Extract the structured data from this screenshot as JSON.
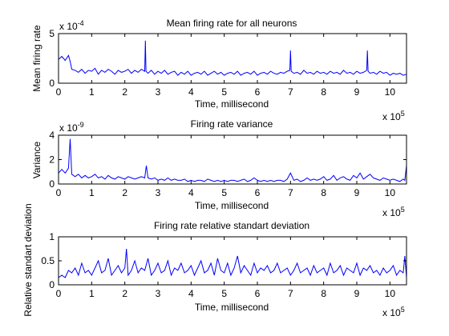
{
  "colors": {
    "line": "#0000ff",
    "axes": "#000000",
    "background": "#ffffff"
  },
  "chart_data": [
    {
      "type": "line",
      "title": "Mean firing rate for all neurons",
      "xlabel": "Time, millisecond",
      "ylabel": "Mean firing rate",
      "x_multiplier": "x 10",
      "x_exponent": "5",
      "y_multiplier": "x 10",
      "y_exponent": "-4",
      "xlim": [
        0,
        10.5
      ],
      "ylim": [
        0,
        5
      ],
      "xticks": [
        "0",
        "1",
        "2",
        "3",
        "4",
        "5",
        "6",
        "7",
        "8",
        "9",
        "10"
      ],
      "yticks": [
        "0",
        "5"
      ],
      "grid": false,
      "series": [
        {
          "x": [
            0,
            0.1,
            0.2,
            0.3,
            0.35,
            0.4,
            0.5,
            0.6,
            0.7,
            0.8,
            0.9,
            1,
            1.1,
            1.2,
            1.3,
            1.4,
            1.5,
            1.6,
            1.7,
            1.8,
            1.9,
            2,
            2.1,
            2.2,
            2.3,
            2.4,
            2.5,
            2.6,
            2.62,
            2.64,
            2.7,
            2.8,
            2.9,
            3,
            3.1,
            3.2,
            3.3,
            3.4,
            3.5,
            3.6,
            3.7,
            3.8,
            3.9,
            4,
            4.1,
            4.2,
            4.3,
            4.4,
            4.5,
            4.6,
            4.7,
            4.8,
            4.9,
            5,
            5.1,
            5.2,
            5.3,
            5.4,
            5.5,
            5.6,
            5.7,
            5.8,
            5.9,
            6,
            6.1,
            6.2,
            6.3,
            6.4,
            6.5,
            6.6,
            6.7,
            6.8,
            6.9,
            6.98,
            7,
            7.02,
            7.1,
            7.2,
            7.3,
            7.4,
            7.5,
            7.6,
            7.7,
            7.8,
            7.9,
            8,
            8.1,
            8.2,
            8.3,
            8.4,
            8.5,
            8.6,
            8.7,
            8.8,
            8.9,
            9,
            9.1,
            9.2,
            9.3,
            9.32,
            9.34,
            9.4,
            9.5,
            9.6,
            9.7,
            9.8,
            9.9,
            10,
            10.1,
            10.2,
            10.3,
            10.4,
            10.5
          ],
          "y": [
            2.4,
            2.7,
            2.3,
            2.8,
            2.2,
            1.4,
            1.3,
            1.1,
            1.4,
            1.0,
            1.3,
            1.2,
            1.5,
            0.9,
            1.3,
            1.1,
            1.4,
            1.2,
            0.9,
            1.3,
            1.1,
            1.2,
            1.4,
            1.0,
            1.3,
            1.1,
            1.4,
            1.2,
            4.3,
            1.2,
            1.0,
            1.3,
            0.9,
            1.2,
            1.0,
            1.3,
            0.9,
            1.1,
            1.2,
            0.8,
            1.1,
            0.9,
            1.2,
            0.8,
            1.0,
            1.1,
            0.9,
            1.2,
            0.8,
            1.0,
            1.2,
            0.9,
            1.1,
            0.8,
            1.0,
            1.1,
            0.9,
            1.2,
            0.8,
            1.0,
            1.1,
            0.9,
            1.2,
            0.8,
            1.0,
            1.1,
            0.9,
            1.2,
            1.0,
            0.9,
            1.1,
            1.0,
            1.2,
            1.3,
            3.3,
            1.2,
            1.0,
            1.1,
            0.9,
            1.3,
            1.0,
            1.1,
            0.9,
            1.2,
            1.0,
            1.1,
            0.9,
            1.2,
            1.0,
            1.1,
            0.9,
            1.3,
            1.0,
            1.1,
            0.9,
            1.2,
            1.0,
            1.1,
            1.3,
            3.3,
            1.2,
            1.0,
            1.1,
            0.9,
            1.2,
            1.0,
            1.1,
            0.8,
            1.0,
            0.9,
            1.0,
            0.8,
            0.9
          ]
        }
      ]
    },
    {
      "type": "line",
      "title": "Firing rate variance",
      "xlabel": "Time, millisecond",
      "ylabel": "Variance",
      "x_multiplier": "x 10",
      "x_exponent": "5",
      "y_multiplier": "x 10",
      "y_exponent": "-9",
      "xlim": [
        0,
        10.5
      ],
      "ylim": [
        0,
        4
      ],
      "xticks": [
        "0",
        "1",
        "2",
        "3",
        "4",
        "5",
        "6",
        "7",
        "8",
        "9",
        "10"
      ],
      "yticks": [
        "0",
        "2",
        "4"
      ],
      "grid": false,
      "series": [
        {
          "x": [
            0,
            0.1,
            0.2,
            0.3,
            0.35,
            0.4,
            0.5,
            0.6,
            0.7,
            0.8,
            0.9,
            1,
            1.1,
            1.2,
            1.3,
            1.4,
            1.5,
            1.6,
            1.7,
            1.8,
            1.9,
            2,
            2.1,
            2.2,
            2.3,
            2.4,
            2.5,
            2.6,
            2.65,
            2.7,
            2.8,
            2.9,
            3,
            3.1,
            3.2,
            3.3,
            3.4,
            3.5,
            3.6,
            3.7,
            3.8,
            3.9,
            4,
            4.1,
            4.2,
            4.3,
            4.4,
            4.5,
            4.6,
            4.7,
            4.8,
            4.9,
            5,
            5.1,
            5.2,
            5.3,
            5.4,
            5.5,
            5.6,
            5.7,
            5.8,
            5.9,
            6,
            6.1,
            6.2,
            6.3,
            6.4,
            6.5,
            6.6,
            6.7,
            6.8,
            6.9,
            7,
            7.1,
            7.2,
            7.3,
            7.4,
            7.5,
            7.6,
            7.7,
            7.8,
            7.9,
            8,
            8.1,
            8.2,
            8.3,
            8.4,
            8.5,
            8.6,
            8.7,
            8.8,
            8.9,
            9,
            9.1,
            9.2,
            9.3,
            9.4,
            9.5,
            9.6,
            9.7,
            9.8,
            9.9,
            10,
            10.1,
            10.2,
            10.3,
            10.4,
            10.45,
            10.5
          ],
          "y": [
            0.9,
            1.2,
            0.9,
            1.3,
            3.7,
            0.8,
            0.6,
            0.8,
            0.5,
            0.7,
            0.5,
            0.6,
            0.8,
            0.5,
            0.6,
            0.4,
            0.7,
            0.5,
            0.4,
            0.6,
            0.5,
            0.4,
            0.6,
            0.5,
            0.4,
            0.5,
            0.6,
            0.5,
            1.5,
            0.5,
            0.4,
            0.5,
            0.3,
            0.4,
            0.3,
            0.5,
            0.3,
            0.4,
            0.3,
            0.3,
            0.4,
            0.2,
            0.3,
            0.2,
            0.3,
            0.3,
            0.2,
            0.4,
            0.3,
            0.2,
            0.3,
            0.2,
            0.3,
            0.2,
            0.3,
            0.3,
            0.2,
            0.3,
            0.4,
            0.2,
            0.3,
            0.5,
            0.3,
            0.2,
            0.3,
            0.2,
            0.3,
            0.2,
            0.3,
            0.3,
            0.2,
            0.4,
            0.9,
            0.3,
            0.4,
            0.2,
            0.3,
            0.5,
            0.3,
            0.4,
            0.3,
            0.4,
            0.6,
            0.3,
            0.4,
            0.7,
            0.3,
            0.5,
            0.6,
            0.4,
            0.3,
            0.7,
            0.5,
            0.9,
            0.4,
            0.6,
            0.8,
            0.5,
            0.4,
            0.3,
            0.5,
            0.4,
            0.3,
            0.4,
            0.3,
            0.2,
            0.4,
            0.3,
            1.5
          ]
        }
      ]
    },
    {
      "type": "line",
      "title": "Firing rate relative standart deviation",
      "xlabel": "Time, millisecond",
      "ylabel": "Relative standart deviation",
      "x_multiplier": "x 10",
      "x_exponent": "5",
      "xlim": [
        0,
        10.5
      ],
      "ylim": [
        0,
        1
      ],
      "xticks": [
        "0",
        "1",
        "2",
        "3",
        "4",
        "5",
        "6",
        "7",
        "8",
        "9",
        "10"
      ],
      "yticks": [
        "0",
        "0.5",
        "1"
      ],
      "grid": false,
      "series": [
        {
          "x": [
            0,
            0.1,
            0.2,
            0.3,
            0.4,
            0.5,
            0.6,
            0.7,
            0.8,
            0.9,
            1,
            1.1,
            1.2,
            1.3,
            1.4,
            1.5,
            1.6,
            1.7,
            1.8,
            1.9,
            2,
            2.05,
            2.1,
            2.2,
            2.3,
            2.4,
            2.5,
            2.6,
            2.7,
            2.8,
            2.9,
            3,
            3.1,
            3.2,
            3.3,
            3.4,
            3.5,
            3.6,
            3.7,
            3.8,
            3.9,
            4,
            4.1,
            4.2,
            4.3,
            4.4,
            4.5,
            4.6,
            4.7,
            4.8,
            4.9,
            5,
            5.1,
            5.2,
            5.3,
            5.4,
            5.5,
            5.6,
            5.7,
            5.8,
            5.9,
            6,
            6.1,
            6.2,
            6.3,
            6.4,
            6.5,
            6.6,
            6.7,
            6.8,
            6.9,
            7,
            7.1,
            7.2,
            7.3,
            7.4,
            7.5,
            7.6,
            7.7,
            7.8,
            7.9,
            8,
            8.1,
            8.2,
            8.3,
            8.4,
            8.5,
            8.6,
            8.7,
            8.8,
            8.9,
            9,
            9.1,
            9.2,
            9.3,
            9.4,
            9.5,
            9.6,
            9.7,
            9.8,
            9.9,
            10,
            10.1,
            10.2,
            10.3,
            10.4,
            10.45,
            10.5
          ],
          "y": [
            0.15,
            0.2,
            0.15,
            0.3,
            0.25,
            0.35,
            0.2,
            0.45,
            0.25,
            0.3,
            0.2,
            0.35,
            0.5,
            0.25,
            0.3,
            0.55,
            0.2,
            0.3,
            0.4,
            0.25,
            0.35,
            0.75,
            0.2,
            0.3,
            0.5,
            0.25,
            0.35,
            0.3,
            0.55,
            0.2,
            0.3,
            0.45,
            0.25,
            0.3,
            0.5,
            0.2,
            0.35,
            0.3,
            0.45,
            0.25,
            0.3,
            0.4,
            0.2,
            0.35,
            0.5,
            0.25,
            0.3,
            0.45,
            0.2,
            0.55,
            0.3,
            0.25,
            0.45,
            0.2,
            0.35,
            0.6,
            0.25,
            0.4,
            0.3,
            0.2,
            0.45,
            0.25,
            0.35,
            0.3,
            0.4,
            0.25,
            0.3,
            0.45,
            0.25,
            0.3,
            0.35,
            0.2,
            0.3,
            0.45,
            0.25,
            0.3,
            0.35,
            0.2,
            0.4,
            0.25,
            0.3,
            0.35,
            0.2,
            0.45,
            0.25,
            0.3,
            0.4,
            0.2,
            0.35,
            0.3,
            0.25,
            0.45,
            0.2,
            0.35,
            0.3,
            0.4,
            0.25,
            0.3,
            0.2,
            0.35,
            0.25,
            0.3,
            0.4,
            0.2,
            0.3,
            0.25,
            0.6,
            0.15
          ]
        }
      ]
    }
  ]
}
